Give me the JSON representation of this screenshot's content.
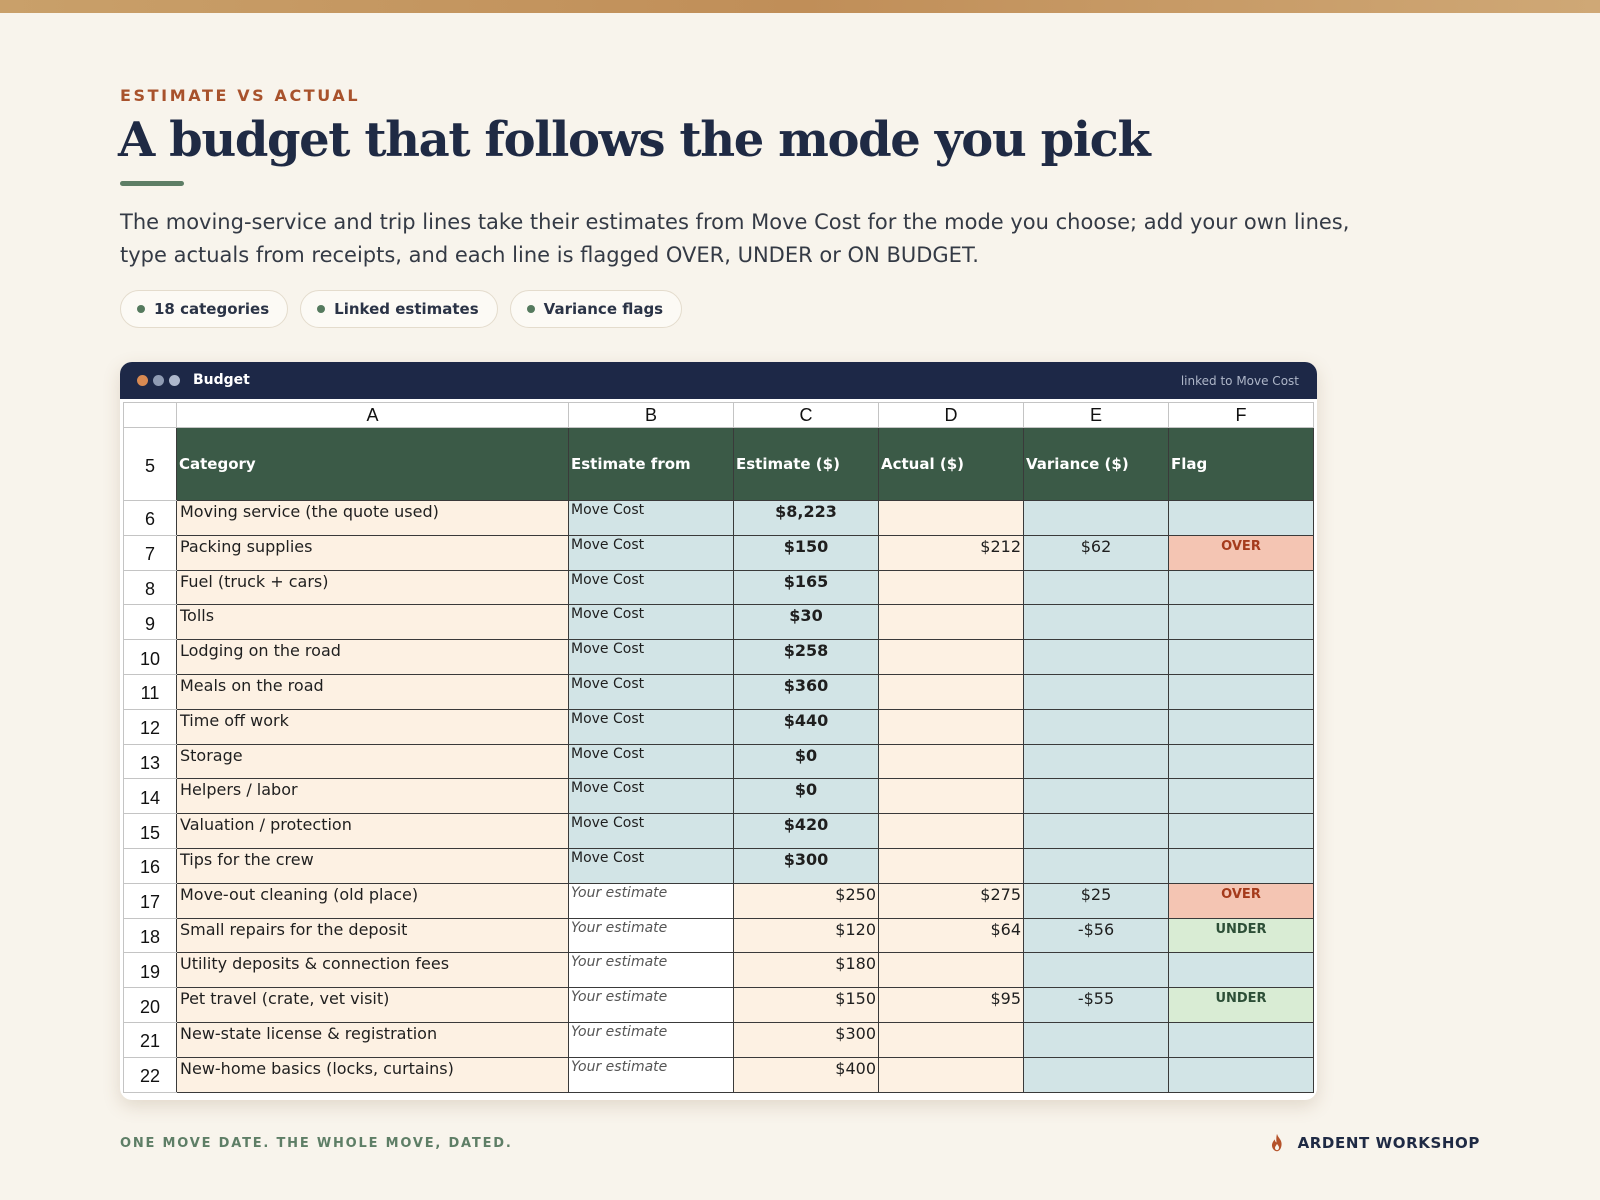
{
  "hero": {
    "eyebrow": "ESTIMATE VS ACTUAL",
    "title": "A budget that follows the mode you pick",
    "subtitle": "The moving-service and trip lines take their estimates from Move Cost for the mode you choose; add your own lines, type actuals from receipts, and each line is flagged OVER, UNDER or ON BUDGET."
  },
  "pills": [
    {
      "label": "18 categories"
    },
    {
      "label": "Linked estimates"
    },
    {
      "label": "Variance flags"
    }
  ],
  "window": {
    "title": "Budget",
    "linked_note": "linked to Move Cost"
  },
  "sheet": {
    "columns": [
      "A",
      "B",
      "C",
      "D",
      "E",
      "F"
    ],
    "header_row_number": "5",
    "headers": [
      "Category",
      "Estimate from",
      "Estimate ($)",
      "Actual ($)",
      "Variance ($)",
      "Flag"
    ],
    "rows": [
      {
        "num": "6",
        "category": "Moving service (the quote used)",
        "source": "Move Cost",
        "estimate": "$8,223",
        "actual": "",
        "variance": "",
        "flag": ""
      },
      {
        "num": "7",
        "category": "Packing supplies",
        "source": "Move Cost",
        "estimate": "$150",
        "actual": "$212",
        "variance": "$62",
        "flag": "OVER"
      },
      {
        "num": "8",
        "category": "Fuel (truck + cars)",
        "source": "Move Cost",
        "estimate": "$165",
        "actual": "",
        "variance": "",
        "flag": ""
      },
      {
        "num": "9",
        "category": "Tolls",
        "source": "Move Cost",
        "estimate": "$30",
        "actual": "",
        "variance": "",
        "flag": ""
      },
      {
        "num": "10",
        "category": "Lodging on the road",
        "source": "Move Cost",
        "estimate": "$258",
        "actual": "",
        "variance": "",
        "flag": ""
      },
      {
        "num": "11",
        "category": "Meals on the road",
        "source": "Move Cost",
        "estimate": "$360",
        "actual": "",
        "variance": "",
        "flag": ""
      },
      {
        "num": "12",
        "category": "Time off work",
        "source": "Move Cost",
        "estimate": "$440",
        "actual": "",
        "variance": "",
        "flag": ""
      },
      {
        "num": "13",
        "category": "Storage",
        "source": "Move Cost",
        "estimate": "$0",
        "actual": "",
        "variance": "",
        "flag": ""
      },
      {
        "num": "14",
        "category": "Helpers / labor",
        "source": "Move Cost",
        "estimate": "$0",
        "actual": "",
        "variance": "",
        "flag": ""
      },
      {
        "num": "15",
        "category": "Valuation / protection",
        "source": "Move Cost",
        "estimate": "$420",
        "actual": "",
        "variance": "",
        "flag": ""
      },
      {
        "num": "16",
        "category": "Tips for the crew",
        "source": "Move Cost",
        "estimate": "$300",
        "actual": "",
        "variance": "",
        "flag": ""
      },
      {
        "num": "17",
        "category": "Move-out cleaning (old place)",
        "source": "Your estimate",
        "estimate": "$250",
        "actual": "$275",
        "variance": "$25",
        "flag": "OVER"
      },
      {
        "num": "18",
        "category": "Small repairs for the deposit",
        "source": "Your estimate",
        "estimate": "$120",
        "actual": "$64",
        "variance": "-$56",
        "flag": "UNDER"
      },
      {
        "num": "19",
        "category": "Utility deposits & connection fees",
        "source": "Your estimate",
        "estimate": "$180",
        "actual": "",
        "variance": "",
        "flag": ""
      },
      {
        "num": "20",
        "category": "Pet travel (crate, vet visit)",
        "source": "Your estimate",
        "estimate": "$150",
        "actual": "$95",
        "variance": "-$55",
        "flag": "UNDER"
      },
      {
        "num": "21",
        "category": "New-state license & registration",
        "source": "Your estimate",
        "estimate": "$300",
        "actual": "",
        "variance": "",
        "flag": ""
      },
      {
        "num": "22",
        "category": "New-home basics (locks, curtains)",
        "source": "Your estimate",
        "estimate": "$400",
        "actual": "",
        "variance": "",
        "flag": ""
      }
    ]
  },
  "footer": {
    "tagline": "ONE MOVE DATE. THE WHOLE MOVE, DATED.",
    "brand": "ARDENT WORKSHOP",
    "brand_icon": "flame-icon"
  },
  "colors": {
    "accent": "#a8522c",
    "navy": "#1d2847",
    "header_green": "#3b5a47",
    "linked_cell": "#d2e4e6",
    "input_cell": "#fdf1e3",
    "over_flag": "#f4c5b3",
    "under_flag": "#d9ecd4"
  }
}
